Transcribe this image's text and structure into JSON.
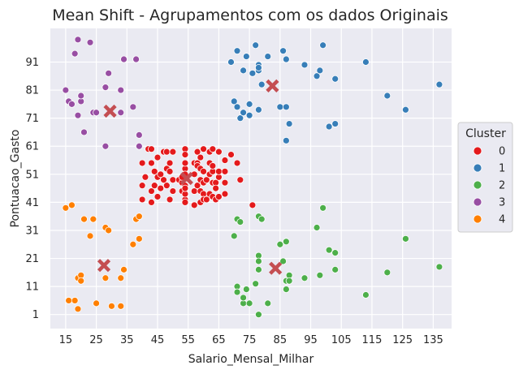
{
  "chart_data": {
    "type": "scatter",
    "title": "Mean Shift - Agrupamentos com os dados Originais",
    "xlabel": "Salario_Mensal_Milhar",
    "ylabel": "Pontuacao_Gasto",
    "xlim": [
      10,
      141
    ],
    "ylim": [
      -4,
      103
    ],
    "xticks": [
      15,
      25,
      35,
      45,
      55,
      65,
      75,
      85,
      95,
      105,
      115,
      125,
      135
    ],
    "yticks": [
      1,
      11,
      21,
      31,
      41,
      51,
      61,
      71,
      81,
      91
    ],
    "grid": true,
    "background": "#eaeaf2",
    "legend": {
      "title": "Cluster",
      "placement": "right",
      "entries": [
        "0",
        "1",
        "2",
        "3",
        "4"
      ]
    },
    "series": [
      {
        "name": "0",
        "color": "#e41a1c",
        "points": [
          [
            40,
            42
          ],
          [
            40,
            47
          ],
          [
            40,
            55
          ],
          [
            41,
            50
          ],
          [
            42,
            60
          ],
          [
            43,
            60
          ],
          [
            43,
            55
          ],
          [
            43,
            45
          ],
          [
            43,
            41
          ],
          [
            44,
            47
          ],
          [
            44,
            52
          ],
          [
            45,
            50
          ],
          [
            45,
            43
          ],
          [
            45,
            57
          ],
          [
            46,
            51
          ],
          [
            46,
            46
          ],
          [
            47,
            59
          ],
          [
            47,
            49
          ],
          [
            48,
            53
          ],
          [
            48,
            59
          ],
          [
            48,
            47
          ],
          [
            49,
            52
          ],
          [
            49,
            42
          ],
          [
            49,
            55
          ],
          [
            50,
            59
          ],
          [
            50,
            45
          ],
          [
            50,
            49
          ],
          [
            52,
            49
          ],
          [
            53,
            45
          ],
          [
            53,
            48
          ],
          [
            53,
            50
          ],
          [
            54,
            47
          ],
          [
            54,
            42
          ],
          [
            54,
            53
          ],
          [
            54,
            44
          ],
          [
            54,
            55
          ],
          [
            54,
            51
          ],
          [
            54,
            46
          ],
          [
            54,
            60
          ],
          [
            54,
            41
          ],
          [
            54,
            58
          ],
          [
            57,
            55
          ],
          [
            57,
            51
          ],
          [
            57,
            45
          ],
          [
            57,
            40
          ],
          [
            58,
            55
          ],
          [
            58,
            54
          ],
          [
            58,
            59
          ],
          [
            58,
            47
          ],
          [
            59,
            41
          ],
          [
            59,
            45
          ],
          [
            59,
            49
          ],
          [
            59,
            53
          ],
          [
            59,
            57
          ],
          [
            60,
            60
          ],
          [
            60,
            48
          ],
          [
            60,
            44
          ],
          [
            60,
            42
          ],
          [
            60,
            52
          ],
          [
            61,
            42
          ],
          [
            61,
            49
          ],
          [
            62,
            55
          ],
          [
            62,
            51
          ],
          [
            62,
            44
          ],
          [
            62,
            59
          ],
          [
            63,
            48
          ],
          [
            63,
            43
          ],
          [
            63,
            52
          ],
          [
            63,
            60
          ],
          [
            63,
            54
          ],
          [
            64,
            48
          ],
          [
            64,
            42
          ],
          [
            64,
            46
          ],
          [
            65,
            50
          ],
          [
            65,
            43
          ],
          [
            65,
            59
          ],
          [
            65,
            52
          ],
          [
            67,
            48
          ],
          [
            67,
            56
          ],
          [
            67,
            44
          ],
          [
            67,
            52
          ],
          [
            69,
            58
          ],
          [
            71,
            55
          ],
          [
            72,
            49
          ],
          [
            76,
            40
          ]
        ]
      },
      {
        "name": "1",
        "color": "#377eb8",
        "points": [
          [
            69,
            91
          ],
          [
            70,
            77
          ],
          [
            71,
            75
          ],
          [
            71,
            95
          ],
          [
            72,
            71
          ],
          [
            73,
            88
          ],
          [
            73,
            73
          ],
          [
            74,
            93
          ],
          [
            75,
            72
          ],
          [
            75,
            76
          ],
          [
            76,
            87
          ],
          [
            77,
            97
          ],
          [
            78,
            74
          ],
          [
            78,
            90
          ],
          [
            78,
            88
          ],
          [
            78,
            89
          ],
          [
            79,
            83
          ],
          [
            81,
            93
          ],
          [
            85,
            75
          ],
          [
            86,
            95
          ],
          [
            87,
            75
          ],
          [
            87,
            63
          ],
          [
            87,
            92
          ],
          [
            88,
            69
          ],
          [
            93,
            90
          ],
          [
            97,
            86
          ],
          [
            98,
            88
          ],
          [
            99,
            97
          ],
          [
            101,
            68
          ],
          [
            103,
            69
          ],
          [
            103,
            85
          ],
          [
            113,
            91
          ],
          [
            120,
            79
          ],
          [
            126,
            74
          ],
          [
            137,
            83
          ]
        ]
      },
      {
        "name": "2",
        "color": "#4daf4a",
        "points": [
          [
            70,
            29
          ],
          [
            71,
            11
          ],
          [
            71,
            9
          ],
          [
            71,
            35
          ],
          [
            72,
            34
          ],
          [
            73,
            5
          ],
          [
            73,
            7
          ],
          [
            74,
            10
          ],
          [
            75,
            5
          ],
          [
            77,
            12
          ],
          [
            78,
            36
          ],
          [
            78,
            22
          ],
          [
            78,
            20
          ],
          [
            78,
            17
          ],
          [
            78,
            1
          ],
          [
            79,
            35
          ],
          [
            81,
            5
          ],
          [
            85,
            26
          ],
          [
            86,
            20
          ],
          [
            87,
            13
          ],
          [
            87,
            27
          ],
          [
            87,
            10
          ],
          [
            88,
            15
          ],
          [
            88,
            13
          ],
          [
            93,
            14
          ],
          [
            97,
            32
          ],
          [
            98,
            15
          ],
          [
            99,
            39
          ],
          [
            101,
            24
          ],
          [
            103,
            23
          ],
          [
            103,
            17
          ],
          [
            113,
            8
          ],
          [
            120,
            16
          ],
          [
            126,
            28
          ],
          [
            137,
            18
          ]
        ]
      },
      {
        "name": "3",
        "color": "#984ea3",
        "points": [
          [
            15,
            81
          ],
          [
            16,
            77
          ],
          [
            17,
            76
          ],
          [
            18,
            94
          ],
          [
            19,
            72
          ],
          [
            19,
            99
          ],
          [
            20,
            77
          ],
          [
            20,
            79
          ],
          [
            21,
            66
          ],
          [
            23,
            98
          ],
          [
            24,
            73
          ],
          [
            25,
            73
          ],
          [
            28,
            61
          ],
          [
            28,
            82
          ],
          [
            29,
            87
          ],
          [
            33,
            73
          ],
          [
            33,
            81
          ],
          [
            34,
            92
          ],
          [
            37,
            75
          ],
          [
            38,
            92
          ],
          [
            39,
            61
          ],
          [
            39,
            65
          ]
        ]
      },
      {
        "name": "4",
        "color": "#ff7f00",
        "points": [
          [
            15,
            39
          ],
          [
            16,
            6
          ],
          [
            17,
            40
          ],
          [
            18,
            6
          ],
          [
            19,
            3
          ],
          [
            19,
            14
          ],
          [
            20,
            15
          ],
          [
            20,
            13
          ],
          [
            21,
            35
          ],
          [
            23,
            29
          ],
          [
            24,
            35
          ],
          [
            25,
            5
          ],
          [
            28,
            32
          ],
          [
            28,
            14
          ],
          [
            29,
            31
          ],
          [
            30,
            4
          ],
          [
            33,
            4
          ],
          [
            33,
            14
          ],
          [
            34,
            17
          ],
          [
            37,
            26
          ],
          [
            38,
            35
          ],
          [
            39,
            36
          ],
          [
            39,
            28
          ]
        ]
      }
    ],
    "centers": {
      "color": "#c44e52",
      "points": [
        [
          54.5,
          49.5
        ],
        [
          82.5,
          82.5
        ],
        [
          83.5,
          17.5
        ],
        [
          29.5,
          73.5
        ],
        [
          27.5,
          18.5
        ]
      ]
    }
  }
}
